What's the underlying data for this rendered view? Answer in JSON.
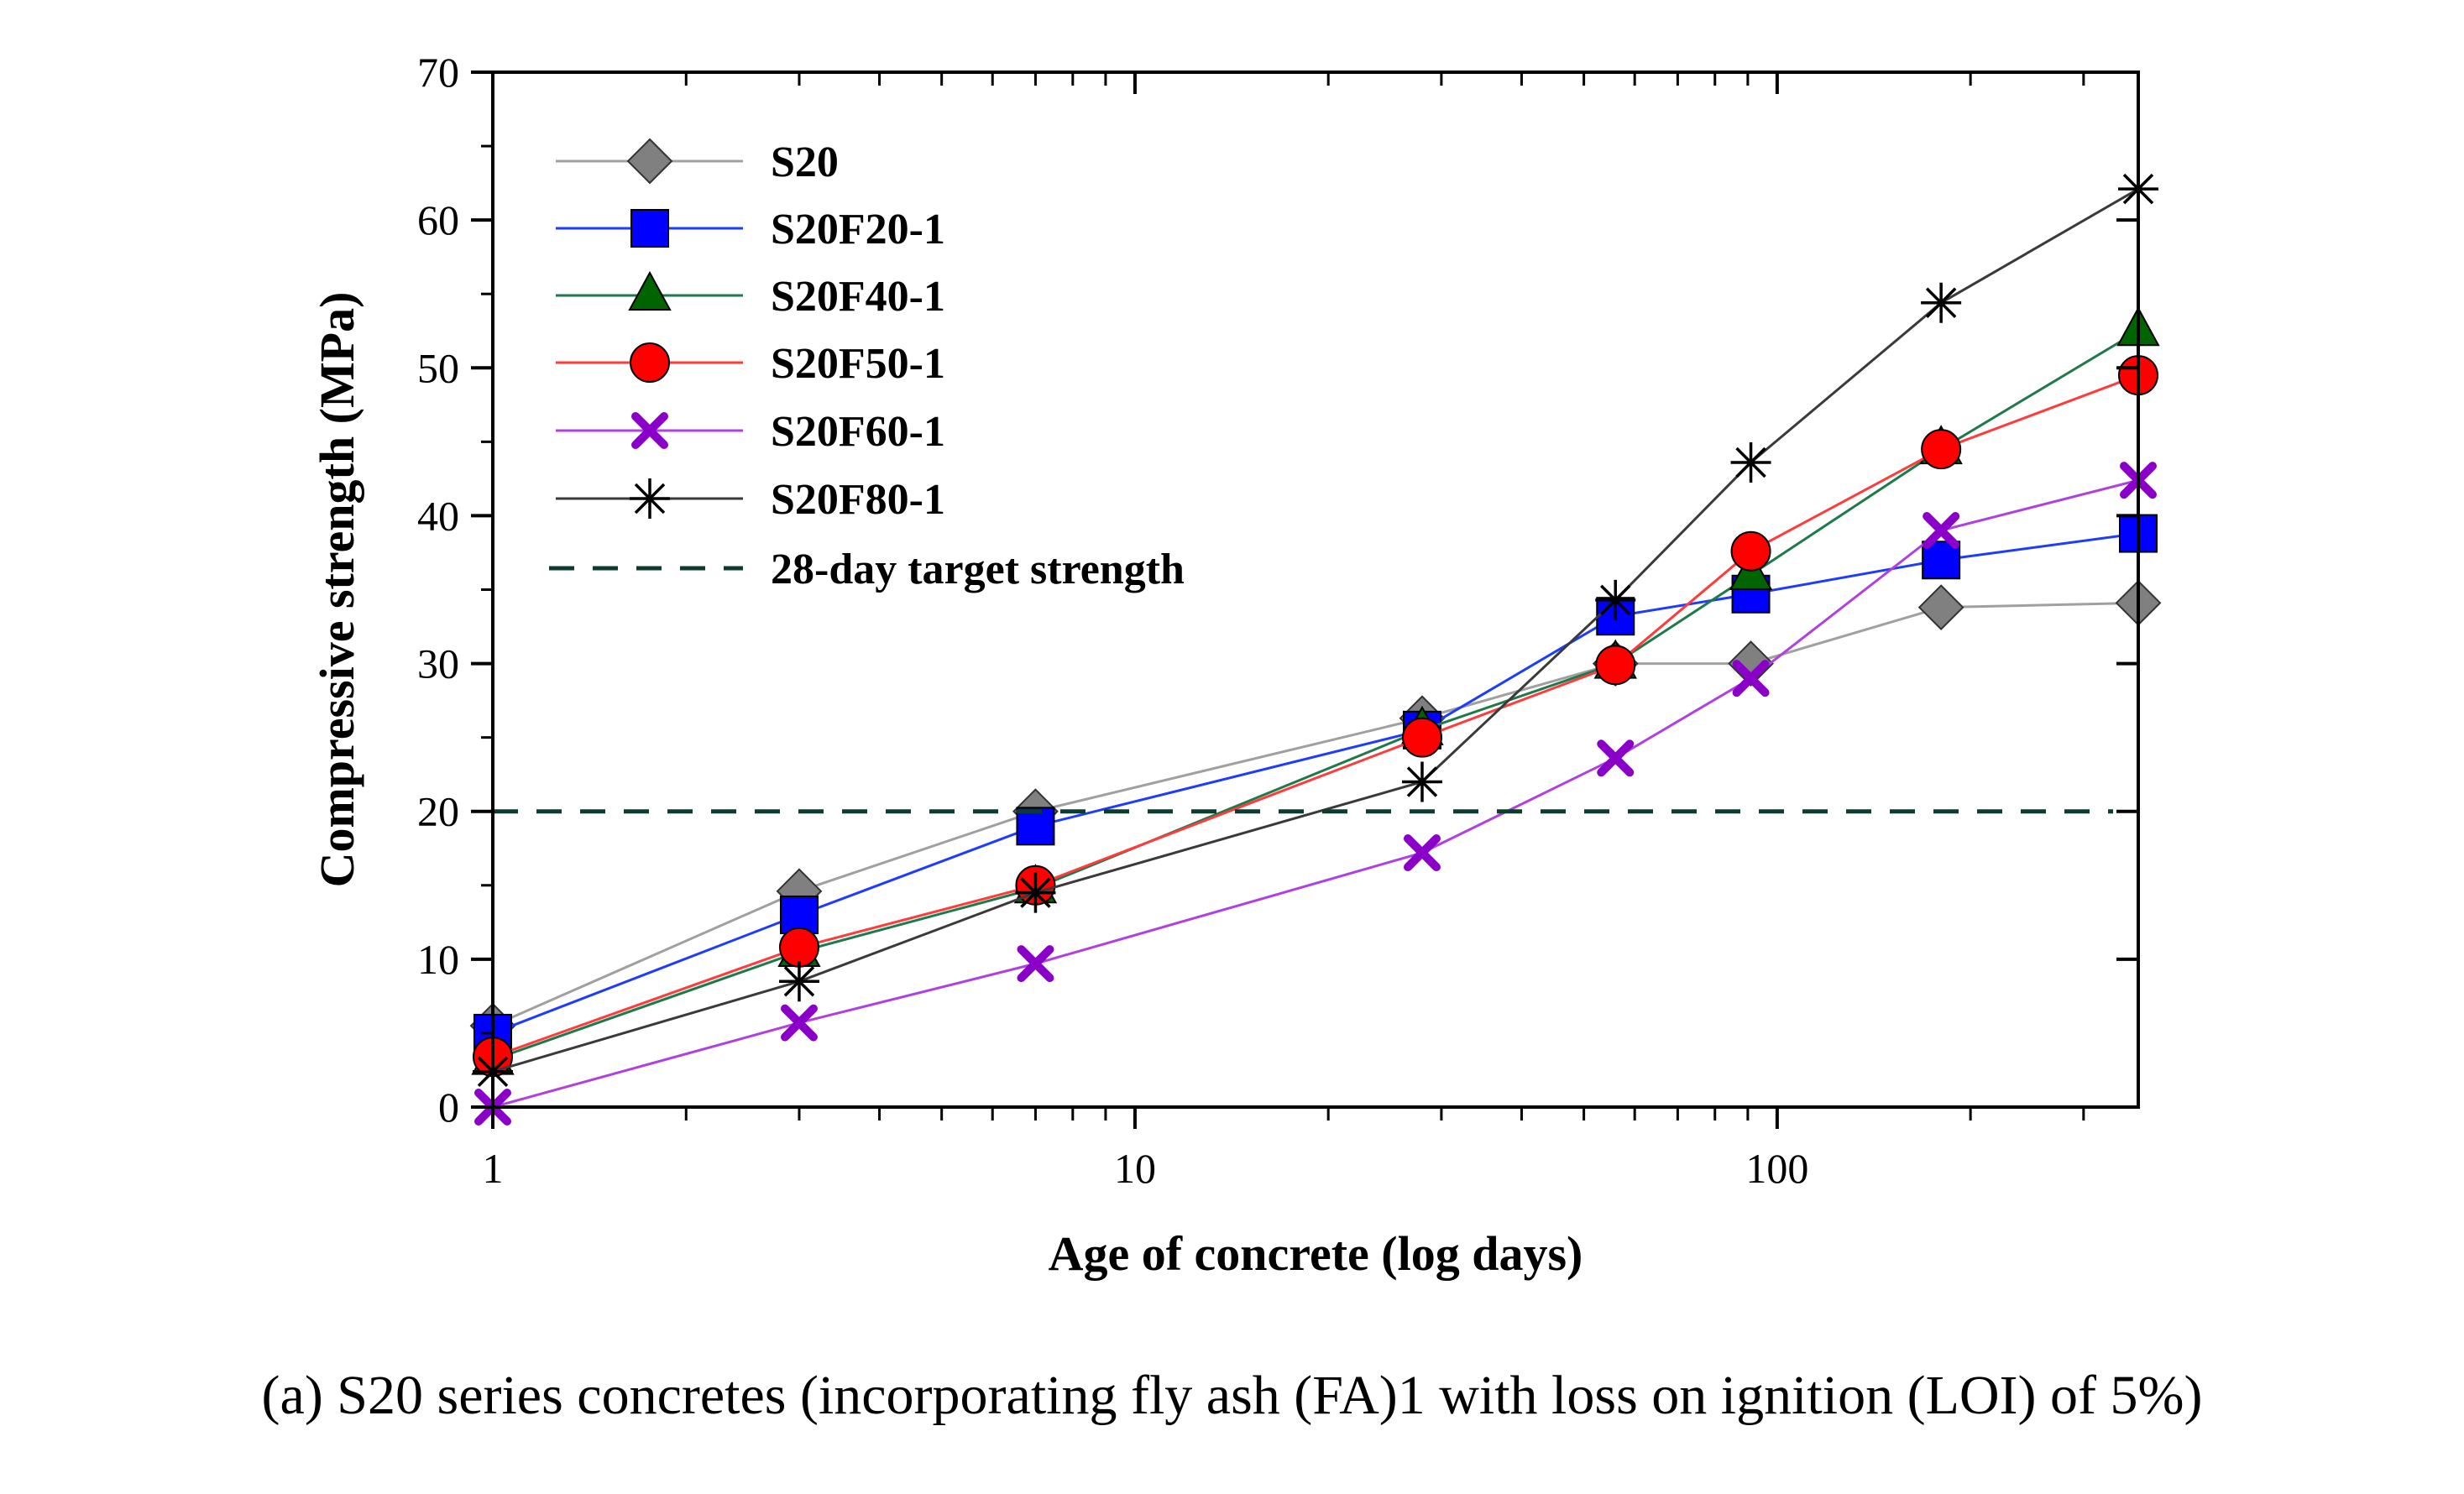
{
  "chart_data": {
    "type": "line",
    "xscale": "log",
    "xlabel": "Age of concrete (log days)",
    "ylabel": "Compressive strength (MPa)",
    "xlim": [
      1,
      365
    ],
    "ylim": [
      0,
      70
    ],
    "xticks": [
      1,
      10,
      100
    ],
    "yticks": [
      0,
      10,
      20,
      30,
      40,
      50,
      60,
      70
    ],
    "grid": false,
    "legend_position": "top-left",
    "series": [
      {
        "name": "S20",
        "color": "#a0a0a0",
        "marker": "diamond",
        "marker_color": "#808080",
        "x": [
          1,
          3,
          7,
          28,
          56,
          91,
          180,
          365
        ],
        "y": [
          5.5,
          14.6,
          20.0,
          26.3,
          30.0,
          30.0,
          33.8,
          34.1
        ]
      },
      {
        "name": "S20F20-1",
        "color": "#1e3cff",
        "marker": "square",
        "marker_color": "#0000ff",
        "x": [
          1,
          3,
          7,
          28,
          56,
          91,
          180,
          365
        ],
        "y": [
          5.0,
          13.0,
          19.0,
          25.5,
          33.2,
          34.7,
          37.0,
          38.8
        ]
      },
      {
        "name": "S20F40-1",
        "color": "#1e7a4a",
        "marker": "triangle",
        "marker_color": "#006400",
        "x": [
          1,
          3,
          7,
          28,
          56,
          91,
          180,
          365
        ],
        "y": [
          3.2,
          10.5,
          14.8,
          25.5,
          30.0,
          36.0,
          44.5,
          52.5
        ]
      },
      {
        "name": "S20F50-1",
        "color": "#ff3b3b",
        "marker": "circle",
        "marker_color": "#ff0000",
        "x": [
          1,
          3,
          7,
          28,
          56,
          91,
          180,
          365
        ],
        "y": [
          3.4,
          10.8,
          15.0,
          25.0,
          29.9,
          37.6,
          44.5,
          49.5
        ]
      },
      {
        "name": "S20F60-1",
        "color": "#b040e0",
        "marker": "x",
        "marker_color": "#8a00c8",
        "x": [
          1,
          3,
          7,
          28,
          56,
          91,
          180,
          365
        ],
        "y": [
          0.0,
          5.7,
          9.7,
          17.2,
          23.6,
          29.0,
          39.0,
          42.4
        ]
      },
      {
        "name": "S20F80-1",
        "color": "#3a3a3a",
        "marker": "star",
        "marker_color": "#000000",
        "x": [
          1,
          3,
          7,
          28,
          56,
          91,
          180,
          365
        ],
        "y": [
          2.4,
          8.5,
          14.5,
          22.0,
          34.3,
          43.6,
          54.4,
          62.1
        ]
      }
    ],
    "reference_line": {
      "name": "28-day target strength",
      "y": 20,
      "style": "dashed",
      "color": "#0f3a30"
    }
  },
  "caption": "(a) S20 series concretes (incorporating fly ash (FA)1 with loss on ignition (LOI) of 5%)"
}
